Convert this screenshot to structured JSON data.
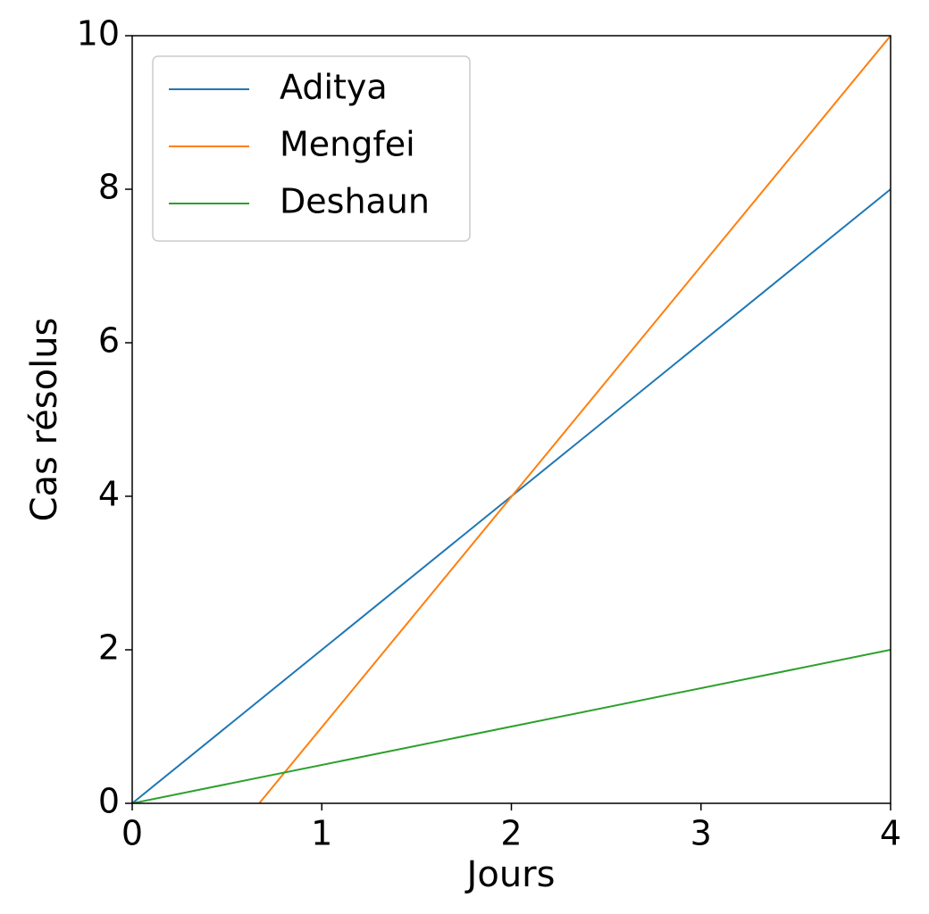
{
  "chart_data": {
    "type": "line",
    "xlabel": "Jours",
    "ylabel": "Cas résolus",
    "series": [
      {
        "name": "Aditya",
        "color": "#1f77b4",
        "x": [
          0,
          4
        ],
        "values": [
          0,
          8
        ]
      },
      {
        "name": "Mengfei",
        "color": "#ff7f0e",
        "x": [
          0.67,
          4
        ],
        "values": [
          0,
          10
        ]
      },
      {
        "name": "Deshaun",
        "color": "#2ca02c",
        "x": [
          0,
          4
        ],
        "values": [
          0,
          2
        ]
      }
    ],
    "xlim": [
      0,
      4
    ],
    "xticks": [
      0,
      1,
      2,
      3,
      4
    ],
    "ylim": [
      0,
      10
    ],
    "yticks": [
      0,
      2,
      4,
      6,
      8,
      10
    ],
    "grid": false,
    "legend": "upper left"
  }
}
